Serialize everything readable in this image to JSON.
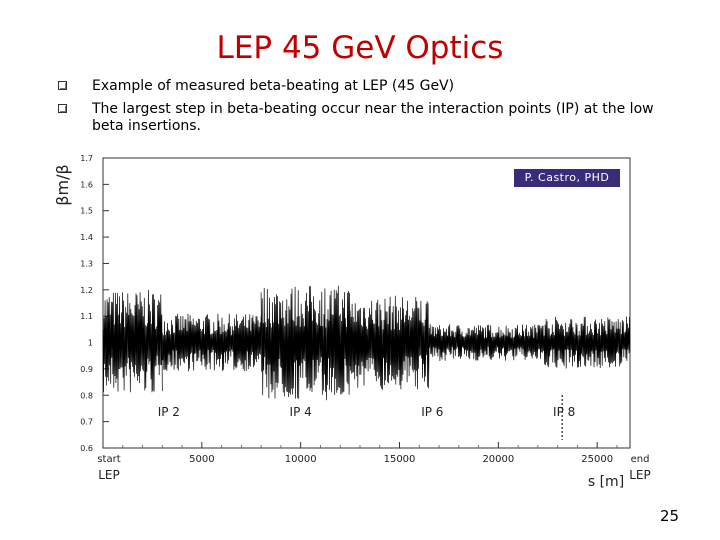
{
  "slide": {
    "title": "LEP 45 GeV Optics",
    "bullets": [
      "Example of measured beta-beating at LEP (45 GeV)",
      "The largest step in beta-beating occur near the interaction points (IP) at the low beta insertions."
    ],
    "credit": "P. Castro, PHD",
    "page_number": "25"
  },
  "chart_data": {
    "type": "line",
    "title": "",
    "ylabel": "βm/β",
    "xlabel": "s [m]",
    "xlim": [
      0,
      26660
    ],
    "ylim": [
      0.6,
      1.7
    ],
    "yticks": [
      {
        "value": 1.7,
        "label": "1.7"
      },
      {
        "value": 1.6,
        "label": "1.6"
      },
      {
        "value": 1.5,
        "label": "1.5"
      },
      {
        "value": 1.4,
        "label": "1.4"
      },
      {
        "value": 1.3,
        "label": "1.3"
      },
      {
        "value": 1.2,
        "label": "1.2"
      },
      {
        "value": 1.1,
        "label": "1.1"
      },
      {
        "value": 1.0,
        "label": "1"
      },
      {
        "value": 0.9,
        "label": "0.9"
      },
      {
        "value": 0.8,
        "label": "0.8"
      },
      {
        "value": 0.7,
        "label": "0.7"
      },
      {
        "value": 0.6,
        "label": "0.6"
      }
    ],
    "xticks": [
      {
        "value": 0,
        "label": "start LEP"
      },
      {
        "value": 5000,
        "label": "5000"
      },
      {
        "value": 10000,
        "label": "10000"
      },
      {
        "value": 15000,
        "label": "15000"
      },
      {
        "value": 20000,
        "label": "20000"
      },
      {
        "value": 25000,
        "label": "25000"
      },
      {
        "value": 26660,
        "label": "end LEP"
      }
    ],
    "annotations": [
      {
        "label": "IP 2",
        "x": 3330
      },
      {
        "label": "IP 4",
        "x": 10000
      },
      {
        "label": "IP 6",
        "x": 16660
      },
      {
        "label": "IP 8",
        "x": 23330
      }
    ],
    "series": [
      {
        "color": "#000000",
        "segments": [
          {
            "x_start": 0,
            "x_end": 3000,
            "amplitude": 0.2
          },
          {
            "x_start": 3000,
            "x_end": 8000,
            "amplitude": 0.11
          },
          {
            "x_start": 8000,
            "x_end": 12500,
            "amplitude": 0.22
          },
          {
            "x_start": 12500,
            "x_end": 16500,
            "amplitude": 0.18
          },
          {
            "x_start": 16500,
            "x_end": 22000,
            "amplitude": 0.07
          },
          {
            "x_start": 22000,
            "x_end": 26660,
            "amplitude": 0.1
          }
        ]
      }
    ]
  }
}
